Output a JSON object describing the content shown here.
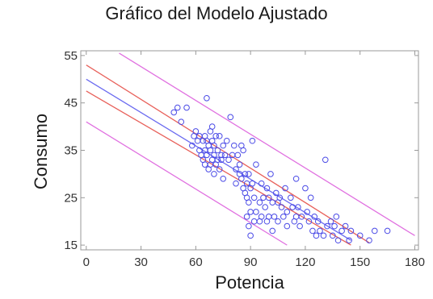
{
  "chart_data": {
    "type": "scatter",
    "title": "Gráfico del Modelo Ajustado",
    "xlabel": "Potencia",
    "ylabel": "Consumo",
    "xlim": [
      -3,
      182
    ],
    "ylim": [
      14,
      56
    ],
    "xticks": [
      0,
      30,
      60,
      90,
      120,
      150,
      180
    ],
    "yticks": [
      15,
      25,
      35,
      45,
      55
    ],
    "grid": false,
    "colors": {
      "points": "#4a4ae6",
      "fit": "#6a6af0",
      "confidence": "#e8605a",
      "prediction": "#e070e0"
    },
    "series": [
      {
        "type": "scatter",
        "points": [
          [
            48,
            43
          ],
          [
            50,
            44
          ],
          [
            52,
            41
          ],
          [
            55,
            44
          ],
          [
            58,
            36
          ],
          [
            59,
            38
          ],
          [
            60,
            39
          ],
          [
            61,
            37
          ],
          [
            62,
            35
          ],
          [
            62,
            38
          ],
          [
            63,
            34
          ],
          [
            64,
            37
          ],
          [
            64,
            33
          ],
          [
            65,
            38
          ],
          [
            65,
            35
          ],
          [
            65,
            32
          ],
          [
            66,
            46
          ],
          [
            66,
            37
          ],
          [
            66,
            34
          ],
          [
            67,
            36
          ],
          [
            67,
            31
          ],
          [
            68,
            39
          ],
          [
            68,
            35
          ],
          [
            68,
            32
          ],
          [
            69,
            40
          ],
          [
            69,
            37
          ],
          [
            69,
            33
          ],
          [
            70,
            36
          ],
          [
            70,
            34
          ],
          [
            70,
            30
          ],
          [
            71,
            38
          ],
          [
            71,
            32
          ],
          [
            72,
            35
          ],
          [
            72,
            33
          ],
          [
            73,
            38
          ],
          [
            73,
            31
          ],
          [
            74,
            34
          ],
          [
            74,
            33
          ],
          [
            75,
            36
          ],
          [
            75,
            29
          ],
          [
            76,
            34
          ],
          [
            77,
            37
          ],
          [
            78,
            33
          ],
          [
            79,
            42
          ],
          [
            80,
            34
          ],
          [
            81,
            36
          ],
          [
            82,
            31
          ],
          [
            82,
            28
          ],
          [
            83,
            34
          ],
          [
            84,
            32
          ],
          [
            84,
            30
          ],
          [
            85,
            36
          ],
          [
            85,
            29
          ],
          [
            86,
            35
          ],
          [
            86,
            27
          ],
          [
            87,
            30
          ],
          [
            87,
            26
          ],
          [
            88,
            28
          ],
          [
            88,
            25
          ],
          [
            88,
            21
          ],
          [
            89,
            30
          ],
          [
            89,
            24
          ],
          [
            89,
            19
          ],
          [
            90,
            27
          ],
          [
            90,
            22
          ],
          [
            90,
            17
          ],
          [
            91,
            28
          ],
          [
            91,
            37
          ],
          [
            92,
            25
          ],
          [
            92,
            20
          ],
          [
            93,
            32
          ],
          [
            93,
            22
          ],
          [
            95,
            24
          ],
          [
            95,
            20
          ],
          [
            96,
            28
          ],
          [
            96,
            21
          ],
          [
            97,
            25
          ],
          [
            98,
            23
          ],
          [
            99,
            27
          ],
          [
            99,
            20
          ],
          [
            100,
            25
          ],
          [
            100,
            21
          ],
          [
            101,
            30
          ],
          [
            102,
            24
          ],
          [
            102,
            18
          ],
          [
            103,
            21
          ],
          [
            104,
            26
          ],
          [
            105,
            24
          ],
          [
            105,
            20
          ],
          [
            106,
            25
          ],
          [
            107,
            23
          ],
          [
            108,
            21
          ],
          [
            109,
            27
          ],
          [
            110,
            22
          ],
          [
            110,
            19
          ],
          [
            112,
            25
          ],
          [
            113,
            23
          ],
          [
            114,
            20
          ],
          [
            115,
            29
          ],
          [
            115,
            21
          ],
          [
            116,
            23
          ],
          [
            117,
            19
          ],
          [
            118,
            21
          ],
          [
            120,
            27
          ],
          [
            121,
            22
          ],
          [
            122,
            20
          ],
          [
            123,
            25
          ],
          [
            124,
            18
          ],
          [
            125,
            21
          ],
          [
            126,
            17
          ],
          [
            127,
            20
          ],
          [
            128,
            18
          ],
          [
            130,
            17
          ],
          [
            131,
            33
          ],
          [
            132,
            19
          ],
          [
            134,
            20
          ],
          [
            135,
            17
          ],
          [
            136,
            19
          ],
          [
            137,
            21
          ],
          [
            138,
            16
          ],
          [
            140,
            18
          ],
          [
            142,
            19
          ],
          [
            144,
            16
          ],
          [
            145,
            18
          ],
          [
            150,
            17
          ],
          [
            155,
            16
          ],
          [
            158,
            18
          ],
          [
            165,
            18
          ]
        ]
      },
      {
        "type": "line",
        "role": "fitted",
        "x": [
          0,
          145
        ],
        "y": [
          50,
          16
        ]
      },
      {
        "type": "line",
        "role": "confidence-upper",
        "x": [
          0,
          155
        ],
        "y": [
          53,
          15.5
        ]
      },
      {
        "type": "line",
        "role": "confidence-lower",
        "x": [
          0,
          145
        ],
        "y": [
          47.5,
          15
        ]
      },
      {
        "type": "line",
        "role": "prediction-upper",
        "x": [
          18,
          180
        ],
        "y": [
          55.5,
          17
        ]
      },
      {
        "type": "line",
        "role": "prediction-lower",
        "x": [
          0,
          110
        ],
        "y": [
          41,
          15
        ]
      }
    ]
  }
}
